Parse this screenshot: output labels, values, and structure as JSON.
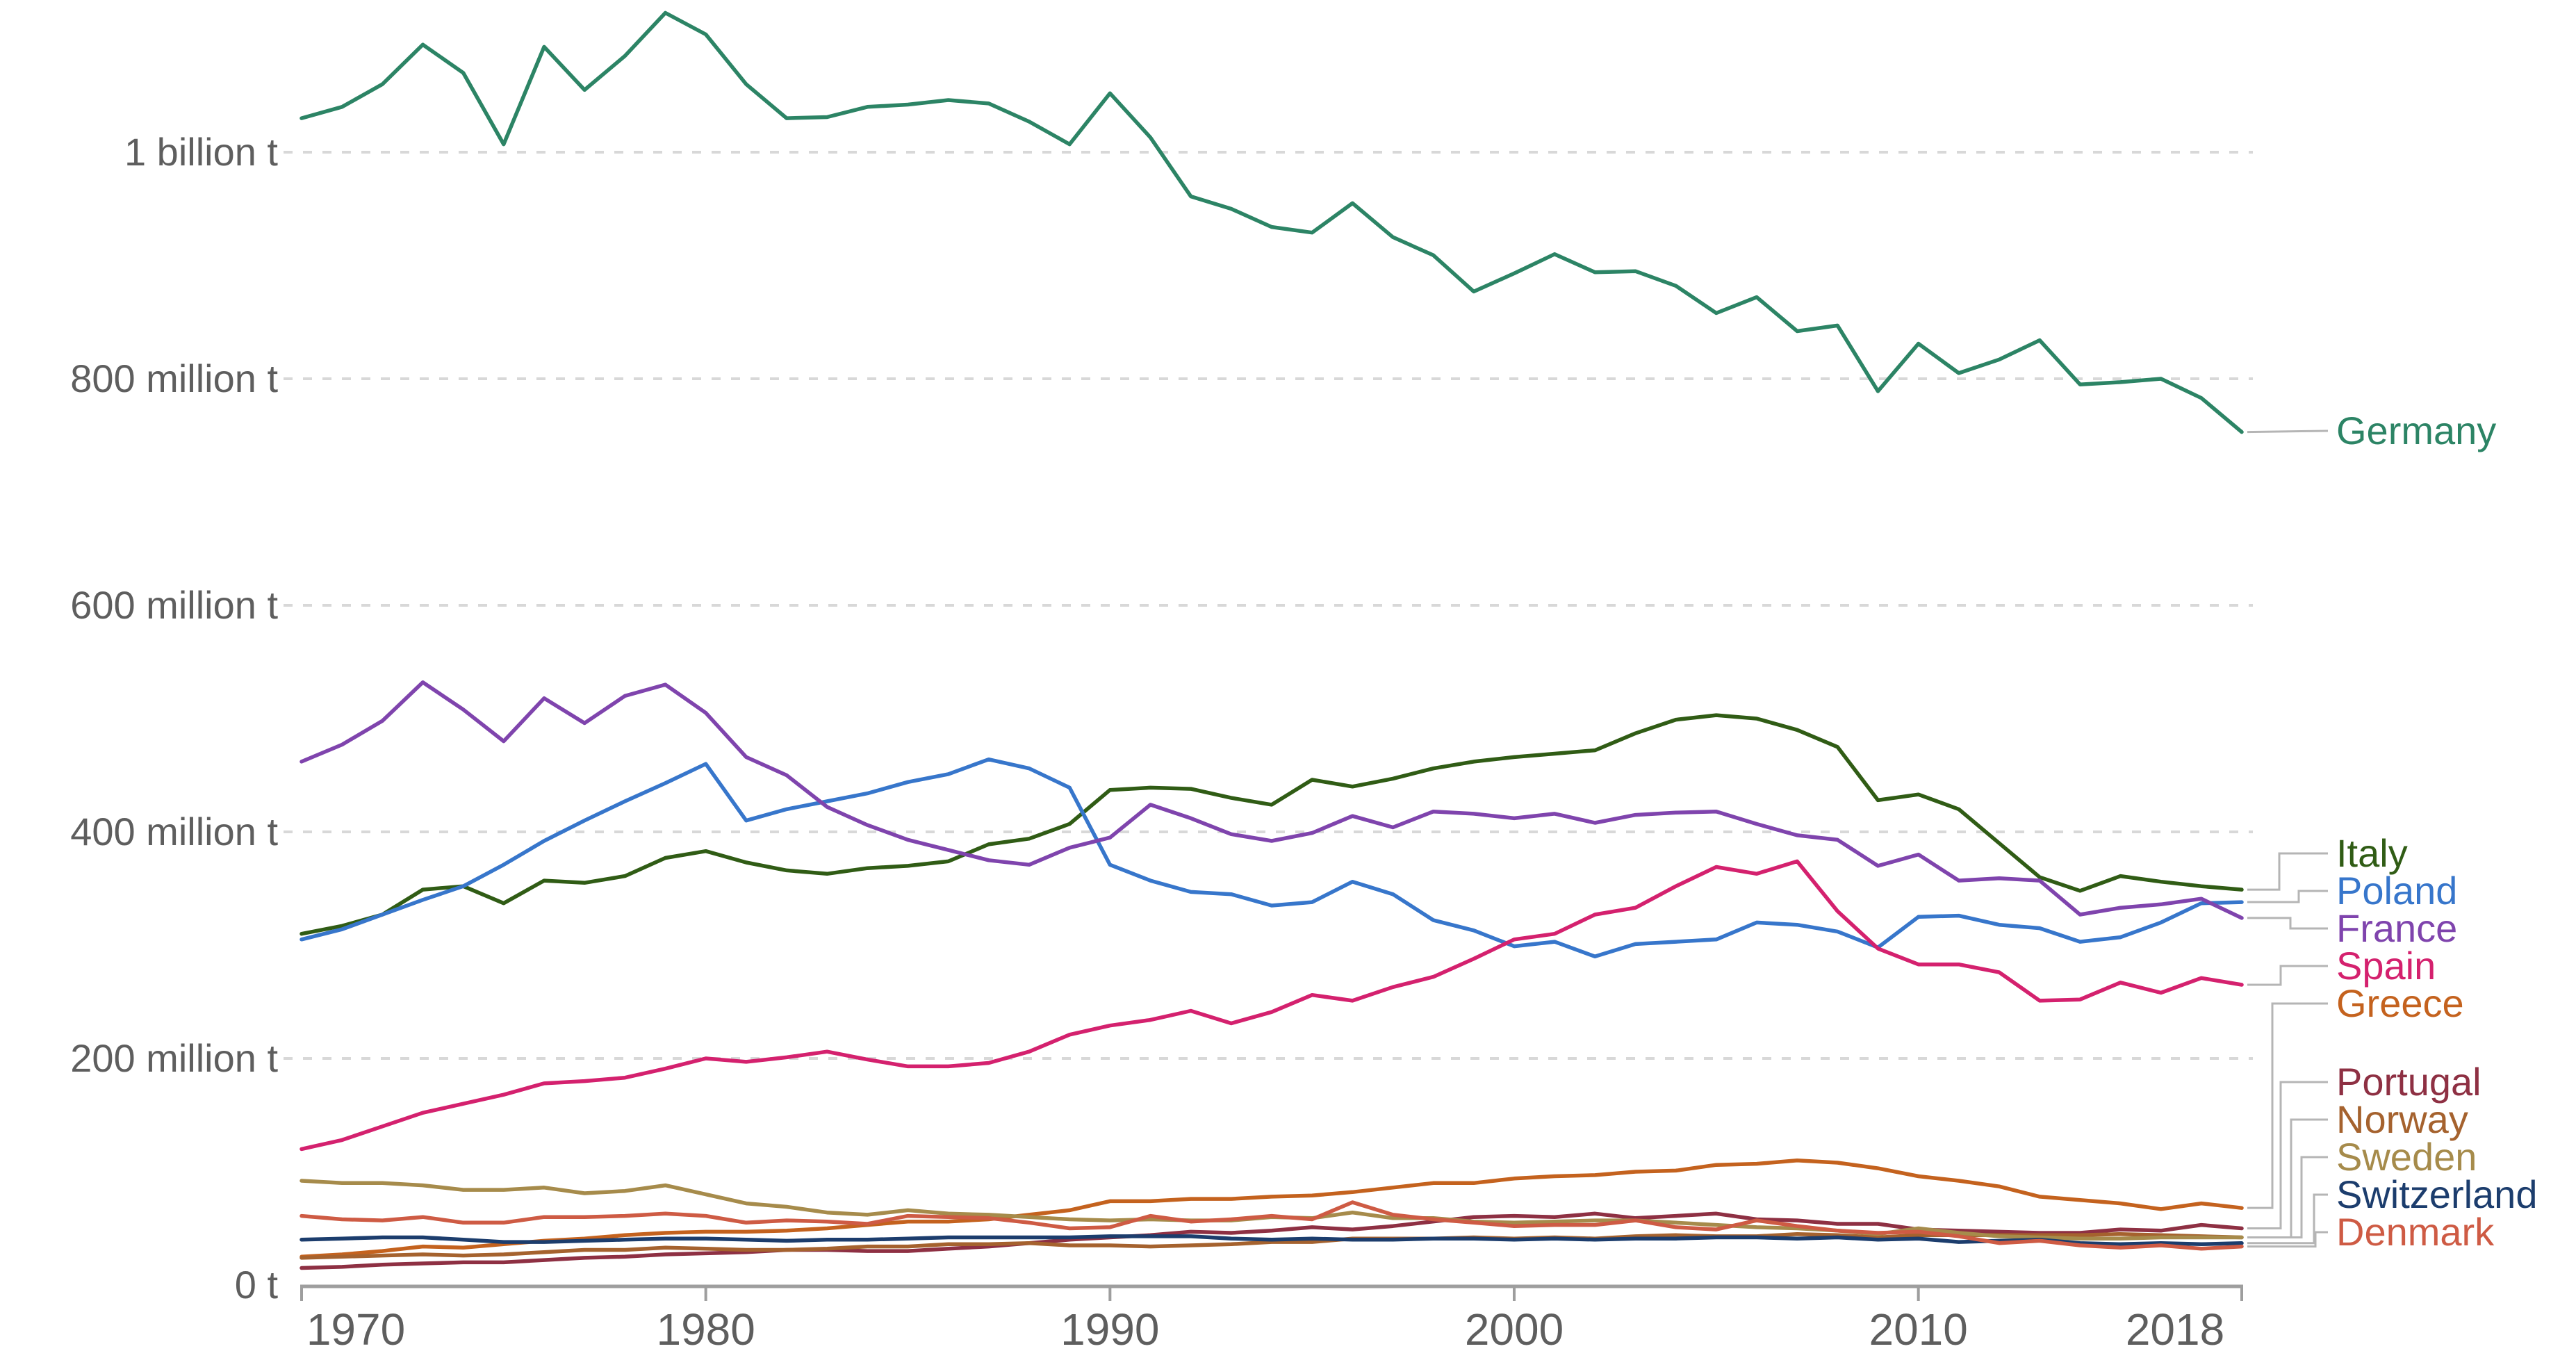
{
  "chart_data": {
    "type": "line",
    "title": "",
    "grid": true,
    "legend_position": "right",
    "years": [
      1970,
      1971,
      1972,
      1973,
      1974,
      1975,
      1976,
      1977,
      1978,
      1979,
      1980,
      1981,
      1982,
      1983,
      1984,
      1985,
      1986,
      1987,
      1988,
      1989,
      1990,
      1991,
      1992,
      1993,
      1994,
      1995,
      1996,
      1997,
      1998,
      1999,
      2000,
      2001,
      2002,
      2003,
      2004,
      2005,
      2006,
      2007,
      2008,
      2009,
      2010,
      2011,
      2012,
      2013,
      2014,
      2015,
      2016,
      2017,
      2018
    ],
    "unit": "t",
    "value_unit": "million tonnes",
    "ylim": [
      0,
      1130
    ],
    "y_axis": {
      "ticks": [
        {
          "value": 0,
          "label": "0 t"
        },
        {
          "value": 200,
          "label": "200 million t"
        },
        {
          "value": 400,
          "label": "400 million t"
        },
        {
          "value": 600,
          "label": "600 million t"
        },
        {
          "value": 800,
          "label": "800 million t"
        },
        {
          "value": 1000,
          "label": "1 billion t"
        }
      ]
    },
    "x_axis": {
      "ticks": [
        {
          "year": 1970,
          "label": "1970"
        },
        {
          "year": 1980,
          "label": "1980"
        },
        {
          "year": 1990,
          "label": "1990"
        },
        {
          "year": 2000,
          "label": "2000"
        },
        {
          "year": 2010,
          "label": "2010"
        },
        {
          "year": 2018,
          "label": "2018"
        }
      ]
    },
    "series": [
      {
        "name": "Germany",
        "color": "#2C8465",
        "values": [
          1030,
          1040,
          1060,
          1095,
          1070,
          1007,
          1093,
          1055,
          1085,
          1123,
          1104,
          1060,
          1030,
          1031,
          1040,
          1042,
          1046,
          1043,
          1027,
          1007,
          1052,
          1013,
          961,
          950,
          934,
          929,
          955,
          925,
          909,
          877,
          893,
          910,
          894,
          895,
          882,
          858,
          872,
          842,
          847,
          789,
          831,
          805,
          817,
          834,
          795,
          797,
          800,
          783,
          753
        ]
      },
      {
        "name": "Italy",
        "color": "#305C15",
        "values": [
          310,
          317,
          327,
          349,
          352,
          337,
          357,
          355,
          361,
          377,
          383,
          373,
          366,
          363,
          368,
          370,
          374,
          389,
          394,
          407,
          437,
          439,
          438,
          430,
          424,
          446,
          440,
          447,
          456,
          462,
          466,
          469,
          472,
          487,
          499,
          503,
          500,
          490,
          475,
          428,
          433,
          420,
          390,
          360,
          348,
          361,
          356,
          352,
          349
        ]
      },
      {
        "name": "Poland",
        "color": "#3776CB",
        "values": [
          305,
          314,
          327,
          340,
          352,
          371,
          392,
          410,
          427,
          443,
          460,
          410,
          420,
          427,
          434,
          444,
          451,
          464,
          456,
          439,
          371,
          357,
          347,
          345,
          335,
          338,
          356,
          345,
          322,
          313,
          299,
          303,
          290,
          301,
          303,
          305,
          320,
          318,
          312,
          298,
          325,
          326,
          318,
          315,
          303,
          307,
          320,
          337,
          338
        ]
      },
      {
        "name": "France",
        "color": "#7F44AD",
        "values": [
          462,
          477,
          498,
          532,
          508,
          480,
          518,
          496,
          520,
          530,
          505,
          466,
          450,
          422,
          406,
          393,
          384,
          375,
          371,
          386,
          395,
          424,
          412,
          398,
          392,
          399,
          414,
          404,
          418,
          416,
          412,
          416,
          408,
          415,
          417,
          418,
          407,
          397,
          393,
          370,
          380,
          357,
          359,
          357,
          327,
          333,
          336,
          341,
          324
        ]
      },
      {
        "name": "Spain",
        "color": "#D4216E",
        "values": [
          120,
          128,
          140,
          152,
          160,
          168,
          178,
          180,
          183,
          191,
          200,
          197,
          201,
          206,
          199,
          193,
          193,
          196,
          206,
          221,
          229,
          234,
          242,
          231,
          241,
          256,
          251,
          263,
          272,
          288,
          305,
          310,
          327,
          333,
          352,
          369,
          363,
          374,
          330,
          297,
          283,
          283,
          276,
          251,
          252,
          267,
          258,
          271,
          265
        ]
      },
      {
        "name": "Greece",
        "color": "#C4621E",
        "values": [
          25,
          27,
          30,
          34,
          33,
          36,
          39,
          41,
          44,
          46,
          47,
          47,
          48,
          50,
          53,
          56,
          56,
          58,
          62,
          66,
          74,
          74,
          76,
          76,
          78,
          79,
          82,
          86,
          90,
          90,
          94,
          96,
          97,
          100,
          101,
          106,
          107,
          110,
          108,
          103,
          96,
          92,
          87,
          78,
          75,
          72,
          67,
          72,
          68
        ]
      },
      {
        "name": "Portugal",
        "color": "#8E3043",
        "values": [
          15,
          16,
          18,
          19,
          20,
          20,
          22,
          24,
          25,
          27,
          28,
          29,
          31,
          31,
          30,
          30,
          32,
          34,
          37,
          40,
          42,
          44,
          47,
          46,
          48,
          51,
          49,
          52,
          56,
          60,
          61,
          60,
          63,
          59,
          61,
          63,
          58,
          57,
          54,
          54,
          49,
          48,
          47,
          46,
          46,
          49,
          48,
          53,
          50
        ]
      },
      {
        "name": "Norway",
        "color": "#A5622E",
        "values": [
          24,
          25,
          26,
          27,
          26,
          27,
          29,
          31,
          31,
          33,
          32,
          31,
          31,
          32,
          34,
          34,
          36,
          36,
          37,
          35,
          35,
          34,
          35,
          36,
          38,
          38,
          41,
          41,
          41,
          42,
          41,
          42,
          41,
          43,
          44,
          43,
          43,
          45,
          44,
          42,
          44,
          44,
          44,
          44,
          44,
          45,
          44,
          43,
          42
        ]
      },
      {
        "name": "Sweden",
        "color": "#A68B4B",
        "values": [
          92,
          90,
          90,
          88,
          84,
          84,
          86,
          81,
          83,
          88,
          80,
          72,
          69,
          64,
          62,
          66,
          63,
          62,
          60,
          58,
          57,
          58,
          57,
          57,
          60,
          59,
          64,
          59,
          59,
          56,
          55,
          56,
          57,
          57,
          55,
          53,
          51,
          50,
          48,
          45,
          50,
          46,
          43,
          42,
          41,
          41,
          42,
          42,
          42
        ]
      },
      {
        "name": "Switzerland",
        "color": "#1C3D6D",
        "values": [
          40,
          41,
          42,
          42,
          40,
          38,
          38,
          39,
          40,
          41,
          41,
          40,
          39,
          40,
          40,
          41,
          42,
          42,
          42,
          42,
          43,
          43,
          43,
          41,
          40,
          41,
          40,
          40,
          41,
          41,
          40,
          41,
          40,
          41,
          41,
          42,
          42,
          41,
          42,
          40,
          41,
          38,
          39,
          40,
          37,
          36,
          37,
          36,
          37
        ]
      },
      {
        "name": "Denmark",
        "color": "#CE5B44",
        "values": [
          61,
          58,
          57,
          60,
          55,
          55,
          60,
          60,
          61,
          63,
          61,
          55,
          57,
          56,
          54,
          61,
          60,
          59,
          55,
          50,
          51,
          61,
          56,
          58,
          61,
          58,
          73,
          62,
          58,
          55,
          52,
          53,
          53,
          57,
          51,
          49,
          57,
          52,
          48,
          46,
          47,
          43,
          37,
          39,
          35,
          33,
          35,
          32,
          34
        ]
      }
    ]
  }
}
